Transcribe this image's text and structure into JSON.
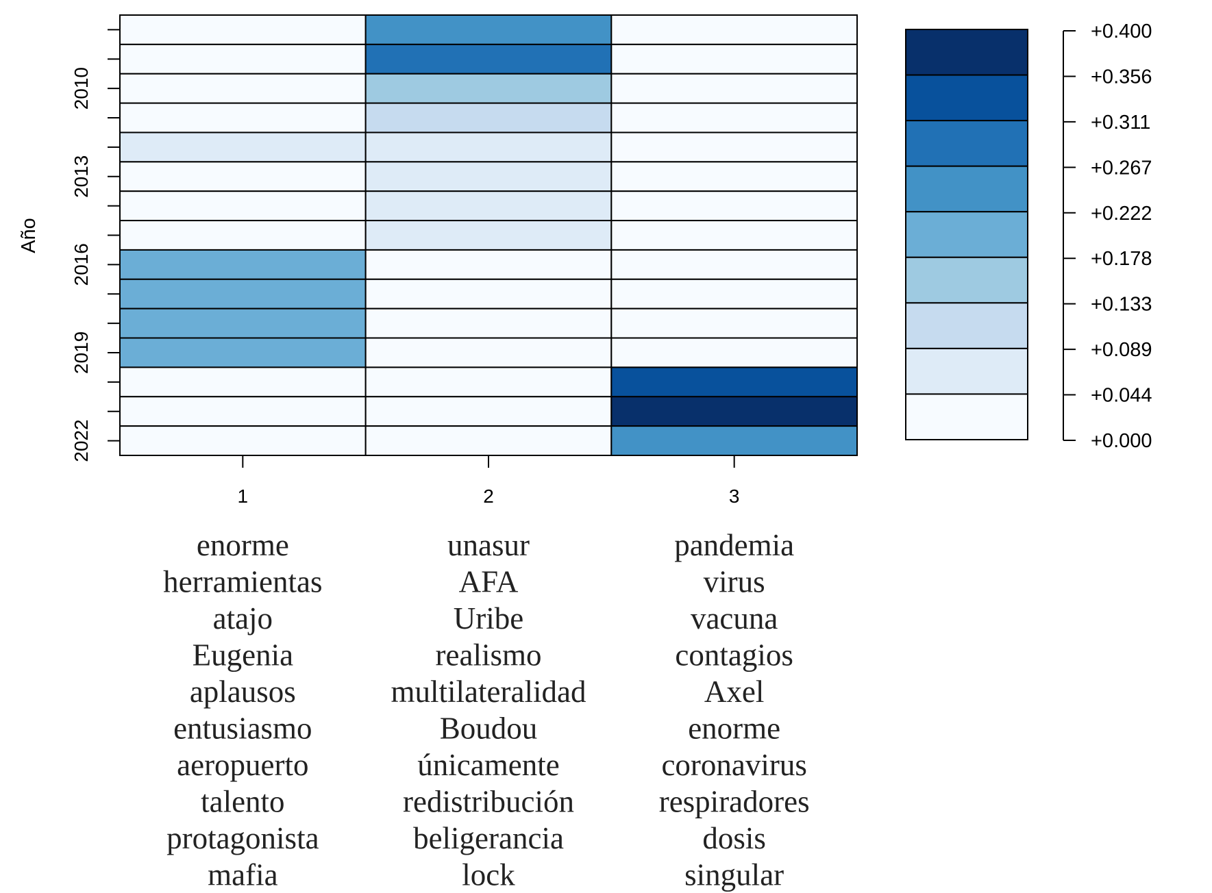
{
  "chart_data": {
    "type": "heatmap",
    "ylabel": "Año",
    "xlabel": "",
    "x_categories": [
      "1",
      "2",
      "3"
    ],
    "y_tick_labels": [
      "2010",
      "2013",
      "2016",
      "2019",
      "2022"
    ],
    "y_tick_label_rows": [
      2,
      5,
      8,
      11,
      14
    ],
    "rows": 15,
    "values": [
      [
        0.0,
        0.26,
        0.0
      ],
      [
        0.0,
        0.3,
        0.0
      ],
      [
        0.0,
        0.15,
        0.0
      ],
      [
        0.0,
        0.1,
        0.0
      ],
      [
        0.05,
        0.05,
        0.0
      ],
      [
        0.0,
        0.05,
        0.0
      ],
      [
        0.0,
        0.05,
        0.0
      ],
      [
        0.0,
        0.05,
        0.0
      ],
      [
        0.2,
        0.0,
        0.0
      ],
      [
        0.2,
        0.0,
        0.0
      ],
      [
        0.2,
        0.0,
        0.0
      ],
      [
        0.2,
        0.0,
        0.0
      ],
      [
        0.0,
        0.0,
        0.34
      ],
      [
        0.0,
        0.0,
        0.39
      ],
      [
        0.0,
        0.0,
        0.26
      ]
    ],
    "legend": {
      "labels": [
        "+0.400",
        "+0.356",
        "+0.311",
        "+0.267",
        "+0.222",
        "+0.178",
        "+0.133",
        "+0.089",
        "+0.044",
        "+0.000"
      ],
      "colors": [
        "#08306b",
        "#08519c",
        "#2171b5",
        "#4292c6",
        "#6baed6",
        "#9ecae1",
        "#c6dbef",
        "#deebf7",
        "#f7fbff"
      ]
    },
    "top_words": [
      [
        "enorme",
        "herramientas",
        "atajo",
        "Eugenia",
        "aplausos",
        "entusiasmo",
        "aeropuerto",
        "talento",
        "protagonista",
        "mafia"
      ],
      [
        "unasur",
        "AFA",
        "Uribe",
        "realismo",
        "multilateralidad",
        "Boudou",
        "únicamente",
        "redistribución",
        "beligerancia",
        "lock"
      ],
      [
        "pandemia",
        "virus",
        "vacuna",
        "contagios",
        "Axel",
        "enorme",
        "coronavirus",
        "respiradores",
        "dosis",
        "singular"
      ]
    ]
  }
}
